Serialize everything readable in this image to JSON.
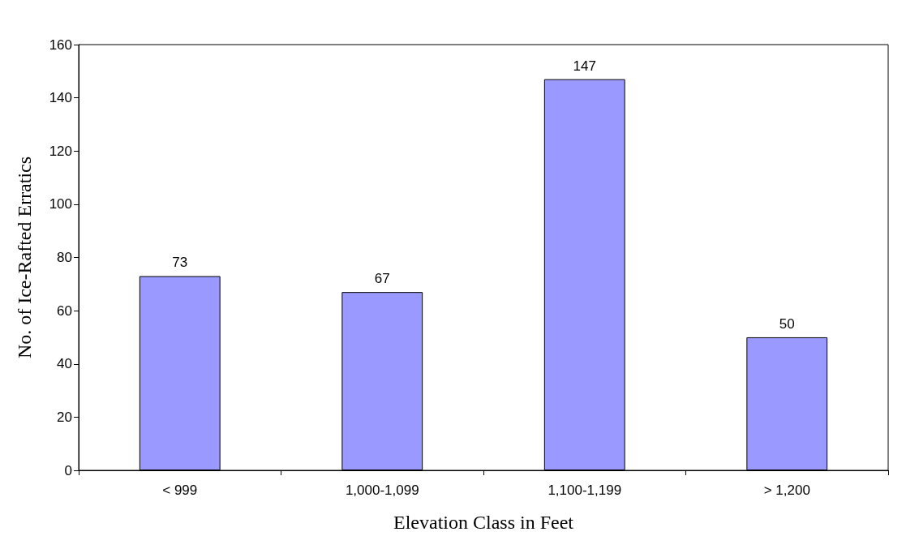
{
  "chart_data": {
    "type": "bar",
    "xlabel": "Elevation Class in Feet",
    "ylabel": "No. of Ice-Rafted Erratics",
    "categories": [
      "< 999",
      "1,000-1,099",
      "1,100-1,199",
      "> 1,200"
    ],
    "values": [
      73,
      67,
      147,
      50
    ],
    "color": "#9999ff",
    "ylim": [
      0,
      160
    ],
    "yticks": [
      0,
      20,
      40,
      60,
      80,
      100,
      120,
      140,
      160
    ],
    "data_labels": true
  }
}
